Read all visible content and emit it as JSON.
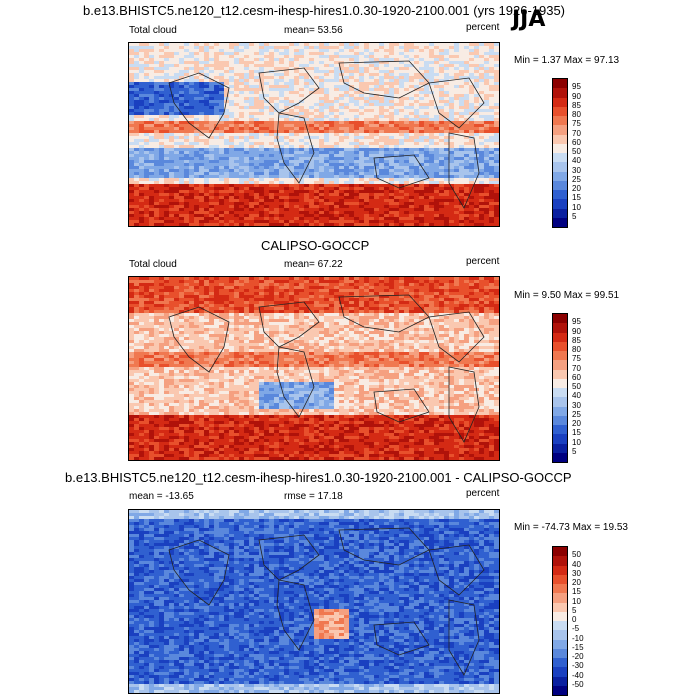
{
  "header": {
    "title": "b.e13.BHISTC5.ne120_t12.cesm-ihesp-hires1.0.30-1920-2100.001 (yrs 1926-1935)",
    "season": "JJA"
  },
  "panels": [
    {
      "id": "model",
      "panel_title": "",
      "left_label": "Total cloud",
      "center_label": "mean=  53.56",
      "right_label": "percent",
      "minmax": "Min =   1.37 Max =  97.13",
      "colorbar_labels": [
        "95",
        "90",
        "85",
        "80",
        "75",
        "70",
        "60",
        "50",
        "40",
        "30",
        "25",
        "20",
        "15",
        "10",
        "5"
      ],
      "colorbar_colors": [
        "#8b0000",
        "#b0120a",
        "#d42a14",
        "#e8502c",
        "#f07850",
        "#f5a080",
        "#fac8b0",
        "#f8ece4",
        "#c9dcf2",
        "#a8c4ec",
        "#80a8e6",
        "#5a88dc",
        "#3060d0",
        "#1a40c0",
        "#0a20a0",
        "#000080"
      ]
    },
    {
      "id": "obs",
      "panel_title": "CALIPSO-GOCCP",
      "left_label": "Total cloud",
      "center_label": "mean=  67.22",
      "right_label": "percent",
      "minmax": "Min =   9.50 Max =  99.51",
      "colorbar_labels": [
        "95",
        "90",
        "85",
        "80",
        "75",
        "70",
        "60",
        "50",
        "40",
        "30",
        "25",
        "20",
        "15",
        "10",
        "5"
      ],
      "colorbar_colors": [
        "#8b0000",
        "#b0120a",
        "#d42a14",
        "#e8502c",
        "#f07850",
        "#f5a080",
        "#fac8b0",
        "#f8ece4",
        "#c9dcf2",
        "#a8c4ec",
        "#80a8e6",
        "#5a88dc",
        "#3060d0",
        "#1a40c0",
        "#0a20a0",
        "#000080"
      ]
    },
    {
      "id": "diff",
      "panel_title": "b.e13.BHISTC5.ne120_t12.cesm-ihesp-hires1.0.30-1920-2100.001 - CALIPSO-GOCCP",
      "left_label": "mean = -13.65",
      "center_label": "rmse =  17.18",
      "right_label": "percent",
      "minmax": "Min = -74.73 Max =  19.53",
      "colorbar_labels": [
        "50",
        "40",
        "30",
        "20",
        "15",
        "10",
        "5",
        "0",
        "-5",
        "-10",
        "-15",
        "-20",
        "-30",
        "-40",
        "-50"
      ],
      "colorbar_colors": [
        "#8b0000",
        "#b0120a",
        "#d42a14",
        "#e8502c",
        "#f07850",
        "#f5a080",
        "#fac8b0",
        "#f8ece4",
        "#c9dcf2",
        "#a8c4ec",
        "#80a8e6",
        "#5a88dc",
        "#3060d0",
        "#1a40c0",
        "#0a20a0",
        "#000080"
      ]
    }
  ]
}
